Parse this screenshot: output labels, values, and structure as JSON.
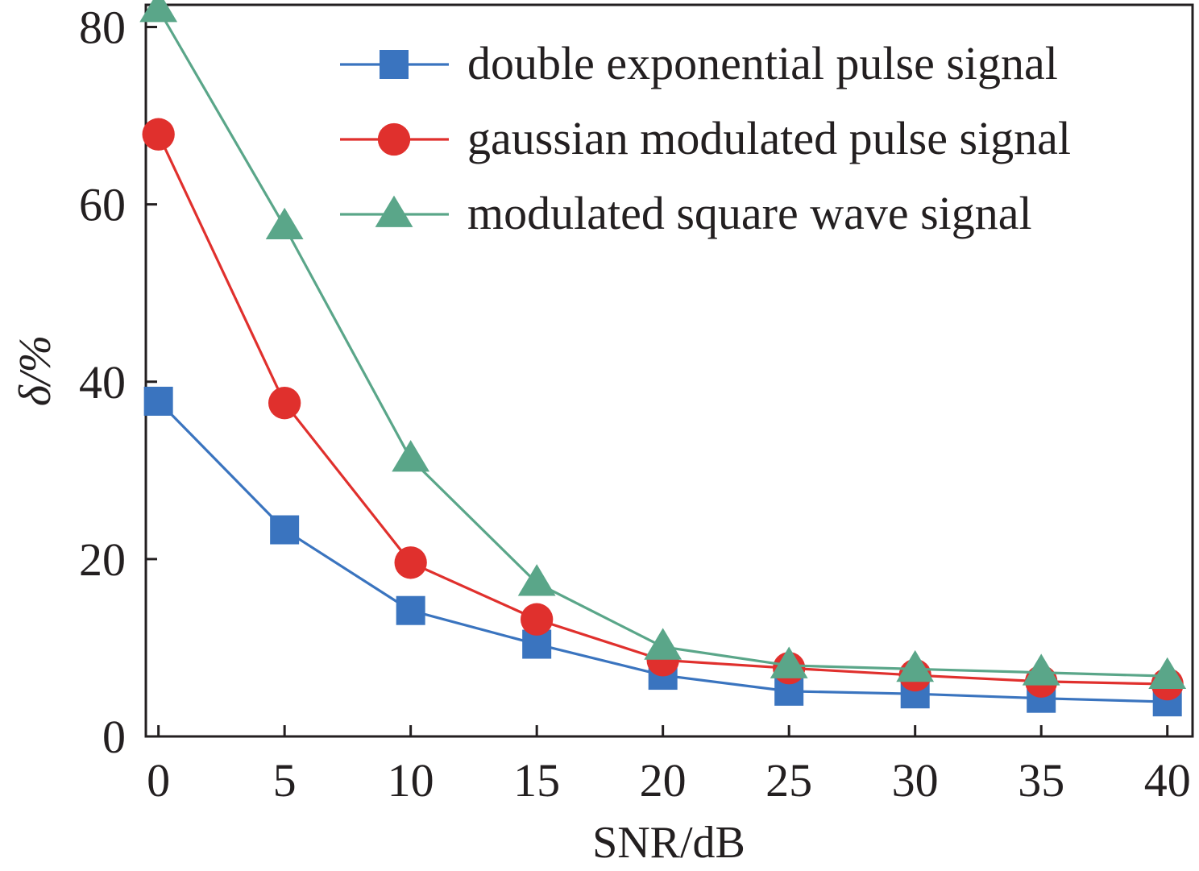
{
  "chart_data": {
    "type": "line",
    "x": [
      0,
      5,
      10,
      15,
      20,
      25,
      30,
      35,
      40
    ],
    "xlabel": "SNR/dB",
    "ylabel": "δ/%",
    "xlim": [
      -0.5,
      41
    ],
    "ylim": [
      0,
      82.5
    ],
    "xticks": [
      "0",
      "5",
      "10",
      "15",
      "20",
      "25",
      "30",
      "35",
      "40"
    ],
    "yticks": [
      "0",
      "20",
      "40",
      "60",
      "80"
    ],
    "grid": false,
    "legend_position": "top-right",
    "series": [
      {
        "name": "double exponential pulse signal",
        "marker": "square",
        "color": "#3a74bf",
        "values": [
          37.8,
          23.3,
          14.2,
          10.4,
          6.9,
          5.1,
          4.8,
          4.3,
          3.9
        ]
      },
      {
        "name": "gaussian modulated pulse signal",
        "marker": "circle",
        "color": "#e0302d",
        "values": [
          67.9,
          37.6,
          19.6,
          13.2,
          8.6,
          7.7,
          6.9,
          6.2,
          5.9
        ]
      },
      {
        "name": "modulated square wave signal",
        "marker": "triangle",
        "color": "#5aa689",
        "values": [
          82.0,
          57.5,
          31.3,
          17.3,
          10.1,
          8.0,
          7.6,
          7.2,
          6.8
        ]
      }
    ]
  }
}
